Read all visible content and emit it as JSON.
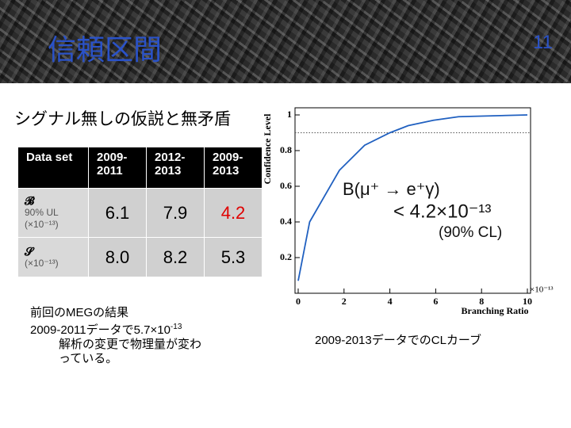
{
  "header": {
    "title": "信頼区間",
    "page_number": "11"
  },
  "subtitle": "シグナル無しの仮説と無矛盾",
  "table": {
    "header": [
      "Data set",
      "2009-2011",
      "2012-2013",
      "2009-2013"
    ],
    "rows": [
      {
        "label": [
          "𝓑",
          "90% UL",
          "(×10⁻¹³)"
        ],
        "cells": [
          {
            "text": "6.1"
          },
          {
            "text": "7.9"
          },
          {
            "text": "4.2",
            "color": "#e00000"
          }
        ]
      },
      {
        "label": [
          "𝓢",
          "(×10⁻¹³)"
        ],
        "cells": [
          {
            "text": "8.0"
          },
          {
            "text": "8.2"
          },
          {
            "text": "5.3"
          }
        ]
      }
    ]
  },
  "notes": [
    {
      "text": "前回のMEGの結果"
    },
    {
      "text": "2009-2011データで5.7×10",
      "sup": "-13"
    },
    {
      "text": "解析の変更で物理量が変わ"
    },
    {
      "text": "っている。"
    }
  ],
  "caption": "2009-2013データでのCLカーブ",
  "chart_data": {
    "type": "line",
    "x_label": "Branching Ratio",
    "y_label": "Confidence Level",
    "x_multiplier": "×10⁻¹³",
    "annotations": [
      "B(μ⁺ → e⁺γ)",
      "< 4.2×10⁻¹³",
      "(90% CL)"
    ],
    "x": [
      0,
      0.5,
      1.8,
      2.9,
      4,
      4.8,
      5.9,
      7,
      10
    ],
    "values": [
      0.07,
      0.4,
      0.69,
      0.83,
      0.9,
      0.94,
      0.97,
      0.99,
      1.0
    ],
    "color": "#2060c0",
    "reference_line": 0.9,
    "xlim": [
      0,
      10
    ],
    "ylim": [
      0,
      1.04
    ],
    "xticks": [
      0,
      2,
      4,
      6,
      8,
      10
    ],
    "yticks": [
      0.2,
      0.4,
      0.6,
      0.8,
      1
    ]
  }
}
